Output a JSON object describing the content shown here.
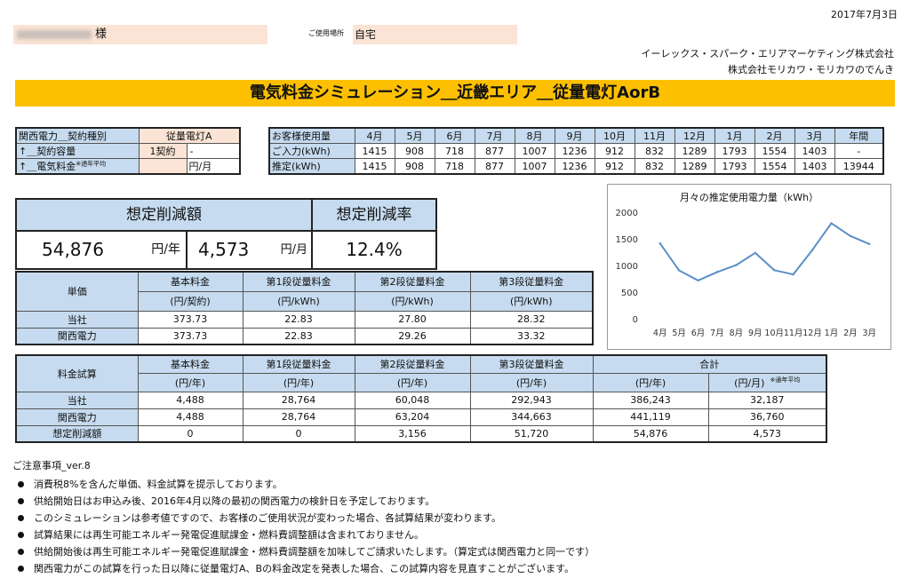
{
  "header": {
    "date": "2017年7月3日",
    "customer_suffix": "様",
    "place_label": "ご使用場所",
    "place_value": "自宅",
    "company1": "イーレックス・スパーク・エリアマーケティング株式会社",
    "company2": "株式会社モリカワ・モリカワのでんき",
    "title": "電気料金シミュレーション＿近畿エリア＿従量電灯AorB"
  },
  "contract": {
    "row1_label": "関西電力＿契約種別",
    "row1_value": "従量電灯A",
    "row2_label": "↑＿契約容量",
    "row2_value": "1契約",
    "row2_extra": "-",
    "row3_label": "↑＿電気料金",
    "row3_note": "※通年平均",
    "row3_unit": "円/月"
  },
  "usage": {
    "header_label": "お客様使用量",
    "months": [
      "4月",
      "5月",
      "6月",
      "7月",
      "8月",
      "9月",
      "10月",
      "11月",
      "12月",
      "1月",
      "2月",
      "3月",
      "年間"
    ],
    "rows": [
      {
        "label": "ご入力(kWh)",
        "values": [
          "1415",
          "908",
          "718",
          "877",
          "1007",
          "1236",
          "912",
          "832",
          "1289",
          "1793",
          "1554",
          "1403",
          "-"
        ]
      },
      {
        "label": "推定(kWh)",
        "values": [
          "1415",
          "908",
          "718",
          "877",
          "1007",
          "1236",
          "912",
          "832",
          "1289",
          "1793",
          "1554",
          "1403",
          "13944"
        ]
      }
    ]
  },
  "savings": {
    "amount_label": "想定削減額",
    "rate_label": "想定削減率",
    "yearly_value": "54,876",
    "yearly_unit": "円/年",
    "monthly_value": "4,573",
    "monthly_unit": "円/月",
    "rate_value": "12.4%"
  },
  "unit_price": {
    "row_header": "単価",
    "columns": [
      {
        "name": "基本料金",
        "unit": "(円/契約)"
      },
      {
        "name": "第1段従量料金",
        "unit": "(円/kWh)"
      },
      {
        "name": "第2段従量料金",
        "unit": "(円/kWh)"
      },
      {
        "name": "第3段従量料金",
        "unit": "(円/kWh)"
      }
    ],
    "rows": [
      {
        "label": "当社",
        "values": [
          "373.73",
          "22.83",
          "27.80",
          "28.32"
        ]
      },
      {
        "label": "関西電力",
        "values": [
          "373.73",
          "22.83",
          "29.26",
          "33.32"
        ]
      }
    ]
  },
  "estimate": {
    "row_header": "料金試算",
    "columns": [
      {
        "name": "基本料金",
        "unit": "(円/年)"
      },
      {
        "name": "第1段従量料金",
        "unit": "(円/年)"
      },
      {
        "name": "第2段従量料金",
        "unit": "(円/年)"
      },
      {
        "name": "第3段従量料金",
        "unit": "(円/年)"
      }
    ],
    "total_label": "合計",
    "total_units": [
      "(円/年)",
      "(円/月)"
    ],
    "total_note": "※通年平均",
    "rows": [
      {
        "label": "当社",
        "values": [
          "4,488",
          "28,764",
          "60,048",
          "292,943",
          "386,243",
          "32,187"
        ]
      },
      {
        "label": "関西電力",
        "values": [
          "4,488",
          "28,764",
          "63,204",
          "344,663",
          "441,119",
          "36,760"
        ]
      },
      {
        "label": "想定削減額",
        "values": [
          "0",
          "0",
          "3,156",
          "51,720",
          "54,876",
          "4,573"
        ]
      }
    ]
  },
  "notes": {
    "title": "ご注意事項_ver.8",
    "items": [
      "消費税8%を含んだ単価、料金試算を提示しております。",
      "供給開始日はお申込み後、2016年4月以降の最初の関西電力の検針日を予定しております。",
      "このシミュレーションは参考値ですので、お客様のご使用状況が変わった場合、各試算結果が変わります。",
      "試算結果には再生可能エネルギー発電促進賦課金・燃料費調整額は含まれておりません。",
      "供給開始後は再生可能エネルギー発電促進賦課金・燃料費調整額を加味してご請求いたします。（算定式は関西電力と同一です）",
      "関西電力がこの試算を行った日以降に従量電灯A、Bの料金改定を発表した場合、この試算内容を見直すことがございます。"
    ]
  },
  "chart_data": {
    "type": "line",
    "title": "月々の推定使用電力量（kWh）",
    "categories": [
      "4月",
      "5月",
      "6月",
      "7月",
      "8月",
      "9月",
      "10月",
      "11月",
      "12月",
      "1月",
      "2月",
      "3月"
    ],
    "values": [
      1415,
      908,
      718,
      877,
      1007,
      1236,
      912,
      832,
      1289,
      1793,
      1554,
      1403
    ],
    "yticks": [
      "2000",
      "1500",
      "1000",
      "500",
      "0"
    ],
    "ylim": [
      0,
      2000
    ],
    "line_color": "#5b8fc7",
    "grid": false,
    "legend": "none"
  }
}
